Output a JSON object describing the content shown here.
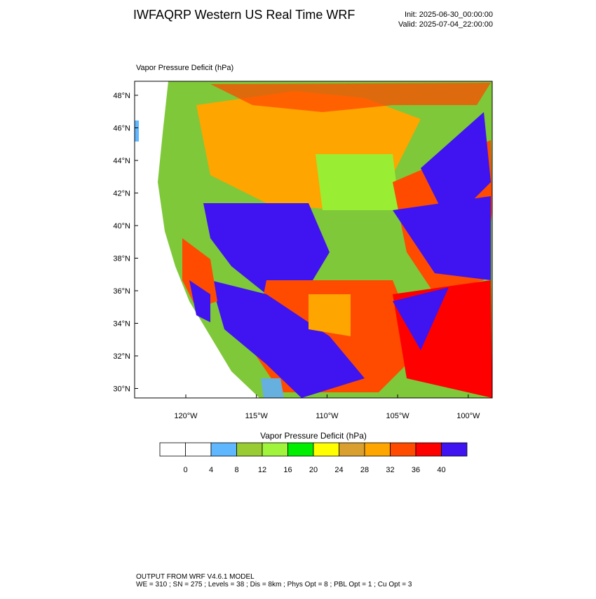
{
  "header": {
    "title": "IWFAQRP Western US Real Time WRF",
    "init": "Init: 2025-06-30_00:00:00",
    "valid": "Valid: 2025-07-04_22:00:00"
  },
  "map": {
    "label": "Vapor Pressure Deficit   (hPa)",
    "lat_labels": [
      "48°N",
      "46°N",
      "44°N",
      "42°N",
      "40°N",
      "38°N",
      "36°N",
      "34°N",
      "32°N",
      "30°N"
    ],
    "lon_labels": [
      "120°W",
      "115°W",
      "110°W",
      "105°W",
      "100°W"
    ]
  },
  "colorbar": {
    "title": "Vapor Pressure Deficit  (hPa)",
    "colors": [
      "#ffffff",
      "#ffffff",
      "#5fb7ff",
      "#99cc33",
      "#a0f53c",
      "#00ee00",
      "#ffff00",
      "#d9a030",
      "#ffa500",
      "#ff4b00",
      "#ff0000",
      "#3f14f0"
    ],
    "labels": [
      "0",
      "4",
      "8",
      "12",
      "16",
      "20",
      "24",
      "28",
      "32",
      "36",
      "40"
    ]
  },
  "footer": {
    "line1": "OUTPUT FROM WRF V4.6.1 MODEL",
    "line2": "WE = 310 ; SN = 275 ; Levels = 38 ; Dis = 8km ; Phys Opt = 8 ; PBL Opt = 1 ; Cu Opt = 3"
  }
}
